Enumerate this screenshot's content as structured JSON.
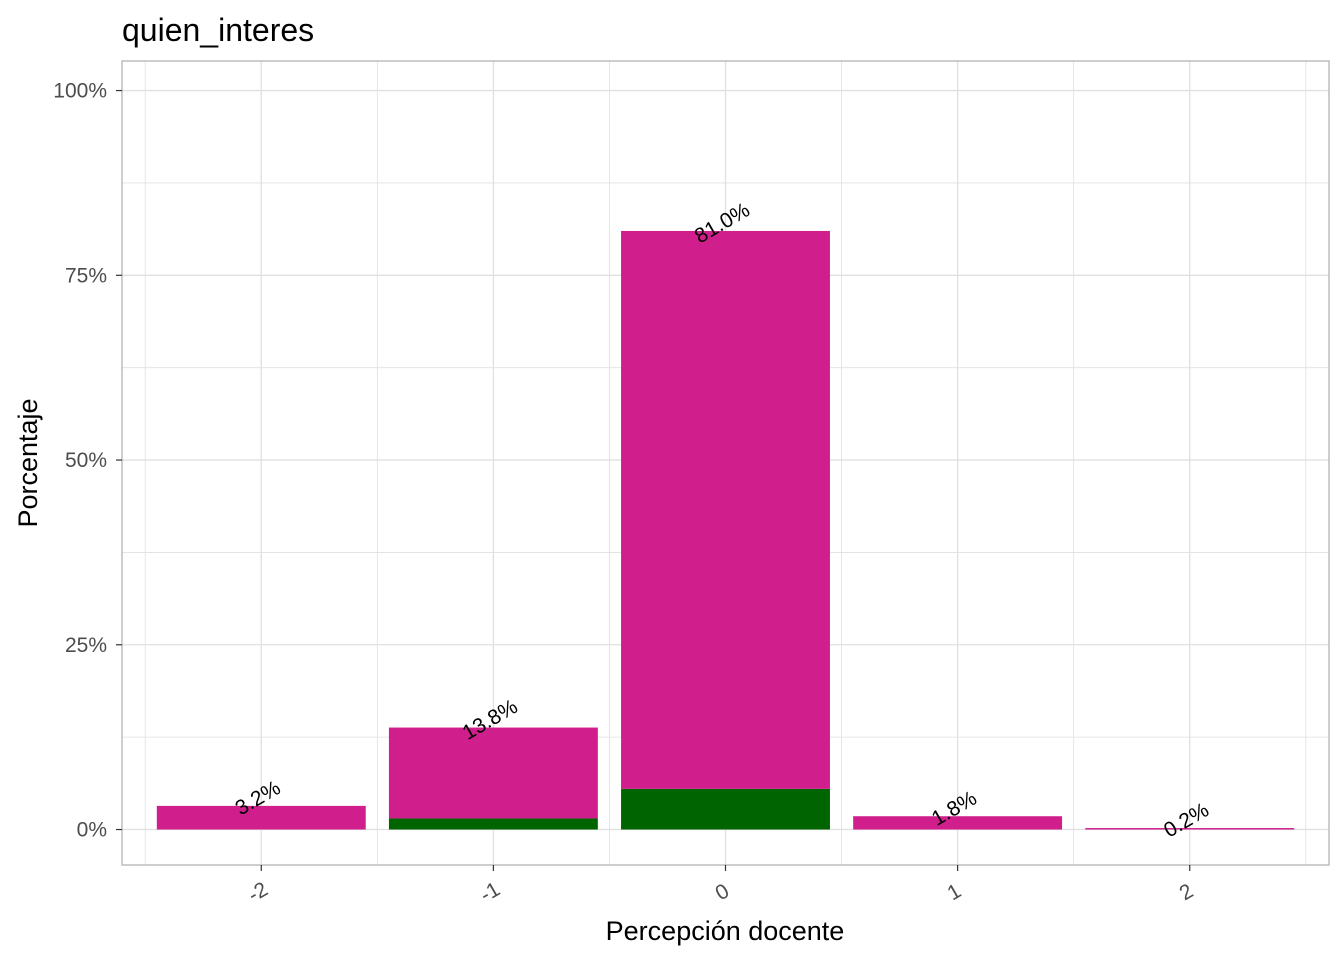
{
  "chart_data": {
    "type": "bar",
    "title": "quien_interes",
    "xlabel": "Percepción docente",
    "ylabel": "Porcentaje",
    "categories": [
      "-2",
      "-1",
      "0",
      "1",
      "2"
    ],
    "ylim": [
      -0.048,
      1.04
    ],
    "yticks": [
      0,
      0.25,
      0.5,
      0.75,
      1.0
    ],
    "ytick_labels": [
      "0%",
      "25%",
      "50%",
      "75%",
      "100%"
    ],
    "totals": [
      0.032,
      0.138,
      0.81,
      0.018,
      0.002
    ],
    "total_labels": [
      "3.2%",
      "13.8%",
      "81.0%",
      "1.8%",
      "0.2%"
    ],
    "series": [
      {
        "values": [
          0,
          0.015,
          0.055,
          0,
          0
        ],
        "color": "#006400"
      },
      {
        "values": [
          0.032,
          0.123,
          0.755,
          0.018,
          0.002
        ],
        "color": "#d01f8c"
      }
    ],
    "grid": true,
    "panel_border_color": "#b3b3b3",
    "grid_color": "#e0e0e0"
  }
}
